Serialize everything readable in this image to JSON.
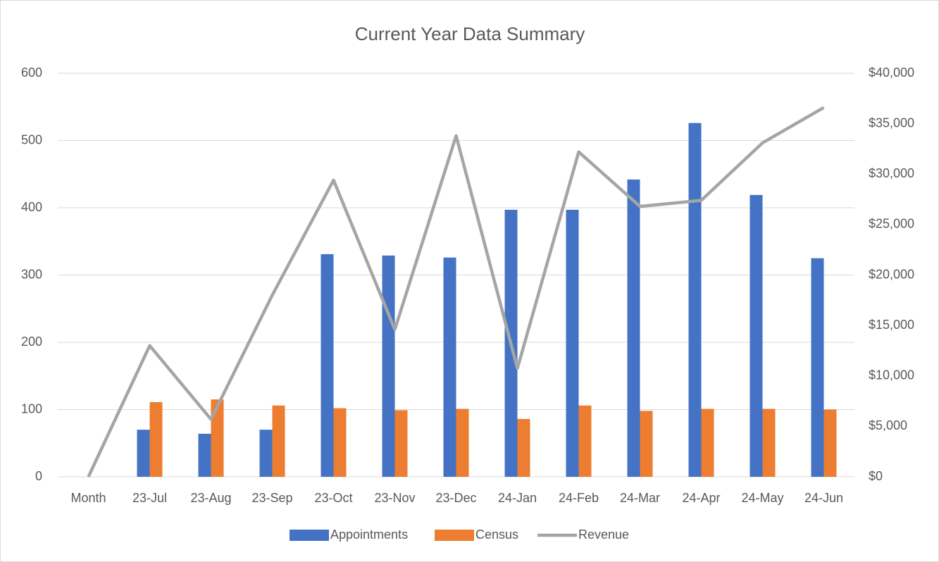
{
  "chart_data": {
    "type": "bar-line",
    "title": "Current Year Data Summary",
    "categories": [
      "Month",
      "23-Jul",
      "23-Aug",
      "23-Sep",
      "23-Oct",
      "23-Nov",
      "23-Dec",
      "24-Jan",
      "24-Feb",
      "24-Mar",
      "24-Apr",
      "24-May",
      "24-Jun"
    ],
    "series": [
      {
        "name": "Appointments",
        "color": "#4472c4",
        "type": "bar",
        "values": [
          null,
          70,
          64,
          70,
          331,
          329,
          326,
          397,
          397,
          442,
          526,
          419,
          325
        ]
      },
      {
        "name": "Census",
        "color": "#ed7d31",
        "type": "bar",
        "values": [
          null,
          111,
          115,
          106,
          102,
          99,
          101,
          86,
          106,
          98,
          101,
          101,
          100
        ]
      },
      {
        "name": "Revenue",
        "color": "#a5a5a5",
        "type": "line",
        "axis": "y2",
        "values": [
          0,
          13000,
          5700,
          18000,
          29400,
          14600,
          33800,
          10750,
          32200,
          26800,
          27400,
          33100,
          36600
        ]
      }
    ],
    "ylim": [
      0,
      600
    ],
    "yticks": [
      0,
      100,
      200,
      300,
      400,
      500,
      600
    ],
    "y2lim": [
      0,
      40000
    ],
    "y2ticks": [
      {
        "value": 0,
        "label": "$0"
      },
      {
        "value": 5000,
        "label": "$5,000"
      },
      {
        "value": 10000,
        "label": "$10,000"
      },
      {
        "value": 15000,
        "label": "$15,000"
      },
      {
        "value": 20000,
        "label": "$20,000"
      },
      {
        "value": 25000,
        "label": "$25,000"
      },
      {
        "value": 30000,
        "label": "$30,000"
      },
      {
        "value": 35000,
        "label": "$35,000"
      },
      {
        "value": 40000,
        "label": "$40,000"
      }
    ],
    "grid": true,
    "legend": "bottom"
  }
}
